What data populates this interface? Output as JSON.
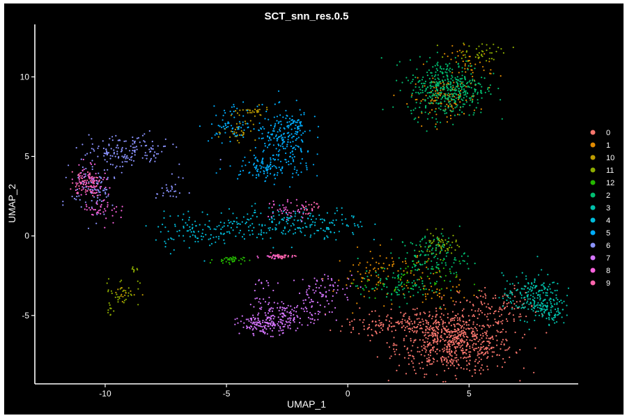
{
  "chart_data": {
    "type": "scatter",
    "title": "SCT_snn_res.0.5",
    "xlabel": "UMAP_1",
    "ylabel": "UMAP_2",
    "xlim": [
      -12.9,
      9.5
    ],
    "ylim": [
      -9.3,
      13.3
    ],
    "xticks": [
      -10,
      -5,
      0,
      5
    ],
    "yticks": [
      -5,
      0,
      5,
      10
    ],
    "grid": false,
    "background": "#000000",
    "legend_position": "right",
    "series": [
      {
        "name": "0",
        "color": "#F8766D",
        "clusters": [
          {
            "cx": 4.4,
            "cy": -6.8,
            "sx": 1.2,
            "sy": 0.9,
            "n": 650
          },
          {
            "cx": 3.0,
            "cy": -5.4,
            "sx": 1.5,
            "sy": 0.45,
            "n": 160
          },
          {
            "cx": 6.2,
            "cy": -4.4,
            "sx": 0.8,
            "sy": 0.6,
            "n": 90
          },
          {
            "cx": 1.5,
            "cy": -5.6,
            "sx": 0.8,
            "sy": 0.3,
            "n": 50
          }
        ]
      },
      {
        "name": "1",
        "color": "#E18A00",
        "clusters": [
          {
            "cx": 4.0,
            "cy": 8.6,
            "sx": 0.7,
            "sy": 0.6,
            "n": 110
          },
          {
            "cx": 5.0,
            "cy": 10.7,
            "sx": 0.5,
            "sy": 0.6,
            "n": 50
          },
          {
            "cx": 1.6,
            "cy": -2.5,
            "sx": 1.1,
            "sy": 0.8,
            "n": 110
          },
          {
            "cx": 3.8,
            "cy": -3.6,
            "sx": 0.6,
            "sy": 0.4,
            "n": 30
          }
        ]
      },
      {
        "name": "10",
        "color": "#BE9C00",
        "clusters": [
          {
            "cx": -4.4,
            "cy": 6.5,
            "sx": 0.35,
            "sy": 0.45,
            "n": 35
          },
          {
            "cx": -4.0,
            "cy": 7.8,
            "sx": 0.4,
            "sy": 0.15,
            "n": 25
          },
          {
            "cx": -9.2,
            "cy": -3.6,
            "sx": 0.25,
            "sy": 0.25,
            "n": 15
          }
        ]
      },
      {
        "name": "11",
        "color": "#8CAB00",
        "clusters": [
          {
            "cx": 3.8,
            "cy": -0.6,
            "sx": 0.35,
            "sy": 0.4,
            "n": 60
          },
          {
            "cx": 5.5,
            "cy": 11.6,
            "sx": 0.6,
            "sy": 0.3,
            "n": 40
          },
          {
            "cx": -9.3,
            "cy": -3.5,
            "sx": 0.35,
            "sy": 0.45,
            "n": 30
          },
          {
            "cx": -9.8,
            "cy": -4.6,
            "sx": 0.1,
            "sy": 0.25,
            "n": 10
          },
          {
            "cx": -8.8,
            "cy": -2.1,
            "sx": 0.1,
            "sy": 0.1,
            "n": 8
          }
        ]
      },
      {
        "name": "12",
        "color": "#24B700",
        "clusters": [
          {
            "cx": -4.9,
            "cy": -1.5,
            "sx": 0.3,
            "sy": 0.12,
            "n": 40
          },
          {
            "cx": 2.6,
            "cy": -2.8,
            "sx": 1.0,
            "sy": 0.6,
            "n": 50
          }
        ]
      },
      {
        "name": "2",
        "color": "#00BE70",
        "clusters": [
          {
            "cx": 4.1,
            "cy": 9.3,
            "sx": 0.8,
            "sy": 0.9,
            "n": 420
          },
          {
            "cx": 3.5,
            "cy": -1.3,
            "sx": 0.7,
            "sy": 0.7,
            "n": 120
          },
          {
            "cx": 2.0,
            "cy": -3.2,
            "sx": 0.8,
            "sy": 0.5,
            "n": 80
          }
        ]
      },
      {
        "name": "3",
        "color": "#00C1AB",
        "clusters": [
          {
            "cx": 7.6,
            "cy": -3.8,
            "sx": 0.6,
            "sy": 0.7,
            "n": 200
          },
          {
            "cx": 8.4,
            "cy": -4.8,
            "sx": 0.3,
            "sy": 0.4,
            "n": 60
          }
        ]
      },
      {
        "name": "4",
        "color": "#00BBDA",
        "clusters": [
          {
            "cx": -3.2,
            "cy": 0.8,
            "sx": 1.4,
            "sy": 0.5,
            "n": 160
          },
          {
            "cx": -6.4,
            "cy": 0.3,
            "sx": 0.8,
            "sy": 0.6,
            "n": 90
          },
          {
            "cx": -1.0,
            "cy": 0.6,
            "sx": 0.9,
            "sy": 0.6,
            "n": 70
          }
        ]
      },
      {
        "name": "5",
        "color": "#00ACFC",
        "clusters": [
          {
            "cx": -2.6,
            "cy": 5.8,
            "sx": 0.6,
            "sy": 1.0,
            "n": 200
          },
          {
            "cx": -3.5,
            "cy": 4.3,
            "sx": 0.7,
            "sy": 0.3,
            "n": 90
          },
          {
            "cx": -4.7,
            "cy": 7.0,
            "sx": 0.5,
            "sy": 0.6,
            "n": 70
          },
          {
            "cx": -2.3,
            "cy": 7.1,
            "sx": 0.4,
            "sy": 0.3,
            "n": 40
          }
        ]
      },
      {
        "name": "6",
        "color": "#8B93FF",
        "clusters": [
          {
            "cx": -9.1,
            "cy": 5.3,
            "sx": 0.9,
            "sy": 0.55,
            "n": 150
          },
          {
            "cx": -10.5,
            "cy": 3.0,
            "sx": 0.45,
            "sy": 0.9,
            "n": 90
          },
          {
            "cx": -7.3,
            "cy": 2.8,
            "sx": 0.3,
            "sy": 0.4,
            "n": 25
          }
        ]
      },
      {
        "name": "7",
        "color": "#D575FE",
        "clusters": [
          {
            "cx": -3.4,
            "cy": -5.6,
            "sx": 0.55,
            "sy": 0.3,
            "n": 150
          },
          {
            "cx": -2.3,
            "cy": -4.8,
            "sx": 0.8,
            "sy": 0.35,
            "n": 110
          },
          {
            "cx": -0.9,
            "cy": -3.4,
            "sx": 0.6,
            "sy": 0.5,
            "n": 70
          },
          {
            "cx": -3.5,
            "cy": -3.8,
            "sx": 0.25,
            "sy": 0.6,
            "n": 25
          }
        ]
      },
      {
        "name": "8",
        "color": "#F962DD",
        "clusters": [
          {
            "cx": -10.6,
            "cy": 3.5,
            "sx": 0.35,
            "sy": 0.55,
            "n": 70
          },
          {
            "cx": -10.1,
            "cy": 1.7,
            "sx": 0.4,
            "sy": 0.4,
            "n": 40
          },
          {
            "cx": -2.5,
            "cy": 1.6,
            "sx": 0.5,
            "sy": 0.35,
            "n": 40
          },
          {
            "cx": -3.0,
            "cy": -1.3,
            "sx": 0.3,
            "sy": 0.08,
            "n": 20
          }
        ]
      },
      {
        "name": "9",
        "color": "#FF65AC",
        "clusters": [
          {
            "cx": -10.8,
            "cy": 3.4,
            "sx": 0.3,
            "sy": 0.4,
            "n": 60
          },
          {
            "cx": -2.8,
            "cy": -1.3,
            "sx": 0.3,
            "sy": 0.08,
            "n": 30
          },
          {
            "cx": -1.5,
            "cy": 1.8,
            "sx": 0.3,
            "sy": 0.2,
            "n": 20
          }
        ]
      }
    ]
  }
}
